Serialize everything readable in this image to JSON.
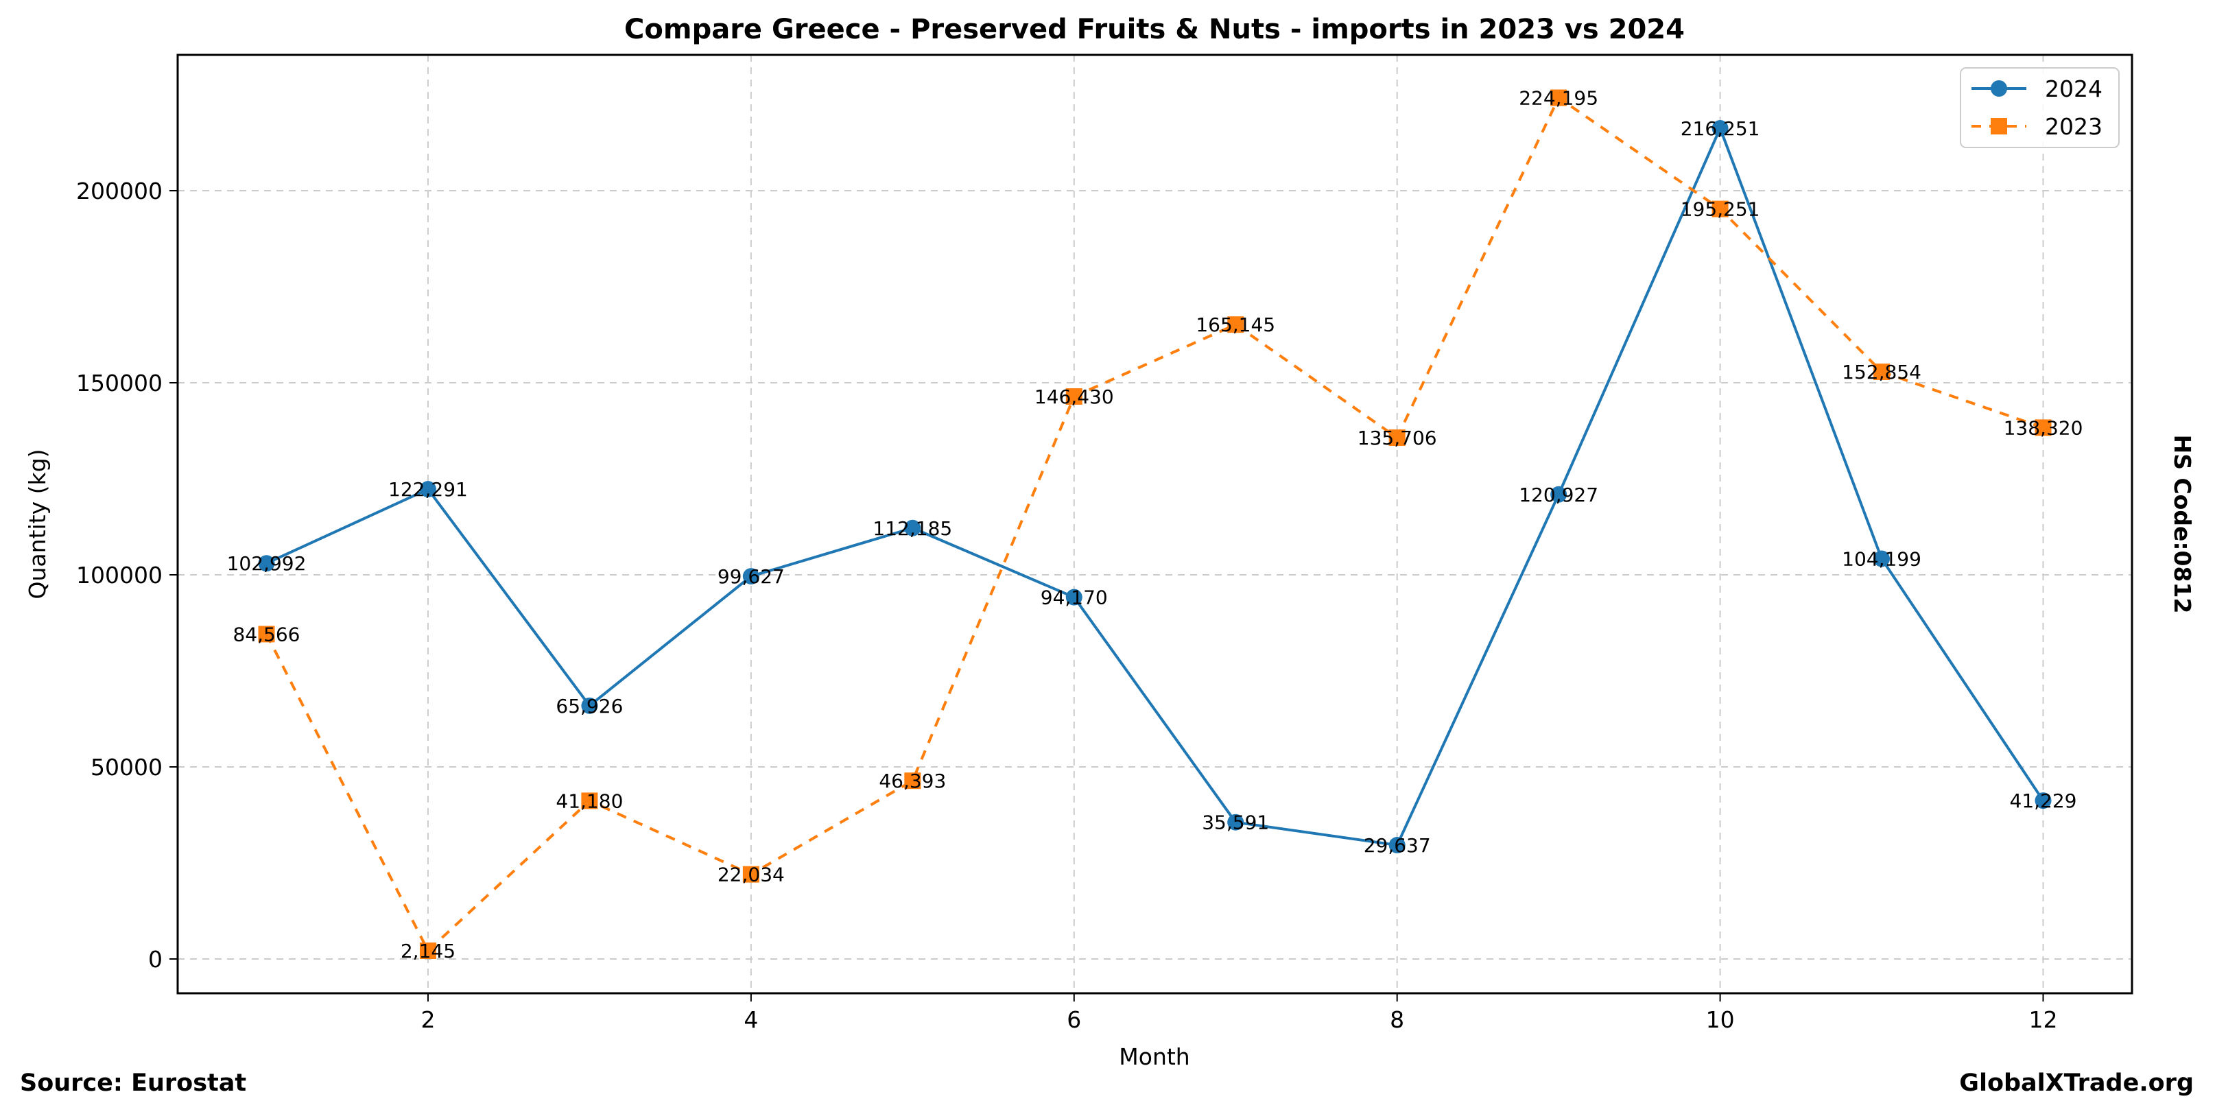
{
  "chart_data": {
    "type": "line",
    "title": "Compare Greece - Preserved Fruits & Nuts - imports in 2023 vs 2024",
    "xlabel": "Month",
    "ylabel": "Quantity (kg)",
    "x": [
      1,
      2,
      3,
      4,
      5,
      6,
      7,
      8,
      9,
      10,
      11,
      12
    ],
    "xlim": [
      0.45,
      12.55
    ],
    "ylim": [
      -8929,
      235357
    ],
    "xticks": [
      2,
      4,
      6,
      8,
      10,
      12
    ],
    "xtick_labels": [
      "2",
      "4",
      "6",
      "8",
      "10",
      "12"
    ],
    "yticks": [
      0,
      50000,
      100000,
      150000,
      200000
    ],
    "ytick_labels": [
      "0",
      "50000",
      "100000",
      "150000",
      "200000"
    ],
    "grid": true,
    "legend_position": "top-right",
    "series": [
      {
        "name": "2024",
        "color": "#1f77b4",
        "line_style": "solid",
        "marker": "circle",
        "values": [
          102992,
          122291,
          65926,
          99627,
          112185,
          94170,
          35591,
          29637,
          120927,
          216251,
          104199,
          41229
        ],
        "labels": [
          "102,992",
          "122,291",
          "65,926",
          "99,627",
          "112,185",
          "94,170",
          "35,591",
          "29,637",
          "120,927",
          "216,251",
          "104,199",
          "41,229"
        ]
      },
      {
        "name": "2023",
        "color": "#ff7f0e",
        "line_style": "dashed",
        "marker": "square",
        "values": [
          84566,
          2145,
          41180,
          22034,
          46393,
          146430,
          165145,
          135706,
          224195,
          195251,
          152854,
          138320
        ],
        "labels": [
          "84,566",
          "2,145",
          "41,180",
          "22,034",
          "46,393",
          "146,430",
          "165,145",
          "135,706",
          "224,195",
          "195,251",
          "152,854",
          "138,320"
        ]
      }
    ]
  },
  "annotations": {
    "source": "Source: Eurostat",
    "watermark": "GlobalXTrade.org",
    "hs_code": "HS Code:0812"
  }
}
